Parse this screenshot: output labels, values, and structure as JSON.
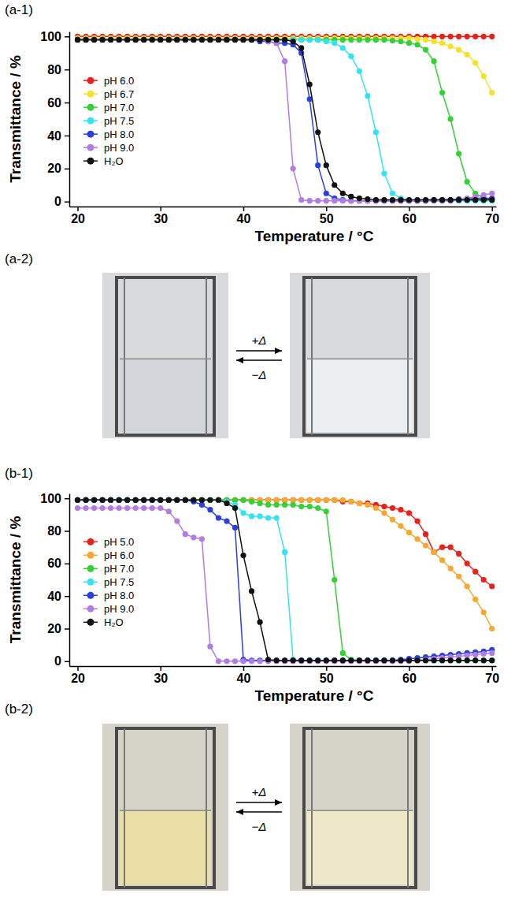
{
  "chart_data": [
    {
      "type": "line",
      "panel_label": "(a-1)",
      "x_label": "Temperature / °C",
      "y_label": "Transmittance / %",
      "xlim": [
        19,
        70.5
      ],
      "xticks": [
        20,
        30,
        40,
        50,
        60,
        70
      ],
      "ylim": [
        -3,
        103
      ],
      "yticks": [
        0,
        20,
        40,
        60,
        80,
        100
      ],
      "grid": false,
      "legend": "left",
      "marker": "circle",
      "line_style": "solid",
      "x": [
        20,
        21,
        22,
        23,
        24,
        25,
        26,
        27,
        28,
        29,
        30,
        31,
        32,
        33,
        34,
        35,
        36,
        37,
        38,
        39,
        40,
        41,
        42,
        43,
        44,
        45,
        46,
        47,
        48,
        49,
        50,
        51,
        52,
        53,
        54,
        55,
        56,
        57,
        58,
        59,
        60,
        61,
        62,
        63,
        64,
        65,
        66,
        67,
        68,
        69,
        70
      ],
      "series": [
        {
          "name": "pH 6.0",
          "color": "#e8221b",
          "values": [
            100,
            100,
            100,
            100,
            100,
            100,
            100,
            100,
            100,
            100,
            100,
            100,
            100,
            100,
            100,
            100,
            100,
            100,
            100,
            100,
            100,
            100,
            100,
            100,
            100,
            100,
            100,
            100,
            100,
            100,
            100,
            100,
            100,
            100,
            100,
            100,
            100,
            100,
            100,
            100,
            100,
            100,
            100,
            100,
            100,
            100,
            100,
            100,
            100,
            100,
            100
          ]
        },
        {
          "name": "pH 6.7",
          "color": "#f2e22b",
          "values": [
            99,
            99,
            99,
            99,
            99,
            99,
            99,
            99,
            99,
            99,
            99,
            99,
            99,
            99,
            99,
            99,
            99,
            99,
            99,
            99,
            99,
            99,
            99,
            99,
            99,
            99,
            99,
            99,
            99,
            99,
            99,
            99,
            99,
            99,
            99,
            99,
            99,
            99,
            99,
            99,
            99,
            98.5,
            98,
            97,
            96,
            94,
            92,
            89,
            84,
            76,
            66
          ]
        },
        {
          "name": "pH 7.0",
          "color": "#35d035",
          "values": [
            98,
            98,
            98,
            98,
            98,
            98,
            98,
            98,
            98,
            98,
            98,
            98,
            98,
            98,
            98,
            98,
            98,
            98,
            98,
            98,
            98,
            98,
            98,
            98,
            98,
            98,
            98,
            98,
            98,
            98,
            98,
            98,
            98,
            98,
            98,
            98,
            98,
            98,
            97.5,
            97,
            96,
            95,
            92,
            85,
            66,
            50,
            29,
            12,
            5,
            2,
            1
          ]
        },
        {
          "name": "pH 7.5",
          "color": "#35e3f0",
          "values": [
            98,
            98,
            98,
            98,
            98,
            98,
            98,
            98,
            98,
            98,
            98,
            98,
            98,
            98,
            98,
            98,
            98,
            98,
            98,
            98,
            98,
            98,
            98,
            98,
            98,
            98,
            98,
            98,
            98,
            98,
            97,
            96,
            93,
            88,
            79,
            64,
            42,
            17,
            5,
            2,
            1,
            0.5,
            0.5,
            0.5,
            0.5,
            0.5,
            0.5,
            0.5,
            0.5,
            0.5,
            0.5
          ]
        },
        {
          "name": "pH 8.0",
          "color": "#2b3fe0",
          "values": [
            98,
            98,
            98,
            98,
            98,
            98,
            98,
            98,
            98,
            98,
            98,
            98,
            98,
            98,
            98,
            98,
            98,
            98,
            98,
            98,
            98,
            98,
            97,
            97,
            96,
            96,
            95,
            90,
            62,
            22,
            5,
            2,
            1,
            0.5,
            0.5,
            0.5,
            0.5,
            0.5,
            0.5,
            0.5,
            0.5,
            0.5,
            0.5,
            1,
            1,
            1,
            1.5,
            1.5,
            2,
            2,
            2
          ]
        },
        {
          "name": "pH 9.0",
          "color": "#b27de3",
          "values": [
            98,
            98,
            98,
            98,
            98,
            98,
            98,
            98,
            98,
            98,
            98,
            98,
            98,
            98,
            98,
            98,
            98,
            98,
            98,
            98,
            98,
            98,
            98,
            97,
            96,
            85,
            20,
            1,
            0.5,
            0.5,
            0.5,
            0.5,
            0.5,
            0.5,
            0.5,
            0.5,
            0.5,
            0.5,
            0.5,
            0.5,
            0.5,
            0.5,
            0.5,
            0.5,
            0.5,
            0.5,
            1,
            2,
            3,
            4,
            5
          ]
        },
        {
          "name": "H₂O",
          "color": "#111111",
          "values": [
            98,
            98,
            98,
            98,
            98,
            98,
            98,
            98,
            98,
            98,
            98,
            98,
            98,
            98,
            98,
            98,
            98,
            98,
            98,
            98,
            98,
            98,
            98,
            98,
            98,
            98,
            97,
            93,
            71,
            42,
            22,
            10,
            5,
            3,
            2,
            1.5,
            1,
            1,
            1,
            1,
            1,
            1,
            1,
            1,
            1,
            1,
            1,
            1,
            1,
            1,
            1
          ]
        }
      ]
    },
    {
      "type": "line",
      "panel_label": "(b-1)",
      "x_label": "Temperature / °C",
      "y_label": "Transmittance / %",
      "xlim": [
        19,
        70.5
      ],
      "xticks": [
        20,
        30,
        40,
        50,
        60,
        70
      ],
      "ylim": [
        -3,
        103
      ],
      "yticks": [
        0,
        20,
        40,
        60,
        80,
        100
      ],
      "grid": false,
      "legend": "left",
      "marker": "circle",
      "line_style": "solid",
      "x": [
        20,
        21,
        22,
        23,
        24,
        25,
        26,
        27,
        28,
        29,
        30,
        31,
        32,
        33,
        34,
        35,
        36,
        37,
        38,
        39,
        40,
        41,
        42,
        43,
        44,
        45,
        46,
        47,
        48,
        49,
        50,
        51,
        52,
        53,
        54,
        55,
        56,
        57,
        58,
        59,
        60,
        61,
        62,
        63,
        64,
        65,
        66,
        67,
        68,
        69,
        70
      ],
      "series": [
        {
          "name": "pH 5.0",
          "color": "#e8221b",
          "values": [
            99,
            99,
            99,
            99,
            99,
            99,
            99,
            99,
            99,
            99,
            99,
            99,
            99,
            99,
            99,
            99,
            99,
            99,
            99,
            99,
            99,
            99,
            99,
            99,
            99,
            99,
            99,
            99,
            99,
            99,
            99,
            99,
            98,
            98,
            97,
            97,
            96,
            95,
            94,
            93,
            91,
            86,
            78,
            67,
            70,
            70,
            66,
            60,
            55,
            50,
            46
          ]
        },
        {
          "name": "pH 6.0",
          "color": "#f6a833",
          "values": [
            99,
            99,
            99,
            99,
            99,
            99,
            99,
            99,
            99,
            99,
            99,
            99,
            99,
            99,
            99,
            99,
            99,
            99,
            99,
            99,
            99,
            99,
            99,
            99,
            99,
            99,
            99,
            99,
            99,
            99,
            99,
            99,
            99,
            98,
            97,
            96,
            94,
            91,
            87,
            83,
            79,
            75,
            71,
            67,
            62,
            57,
            52,
            46,
            38,
            30,
            20
          ]
        },
        {
          "name": "pH 7.0",
          "color": "#35d035",
          "values": [
            99,
            99,
            99,
            99,
            99,
            99,
            99,
            99,
            99,
            99,
            99,
            99,
            99,
            99,
            99,
            99,
            99,
            99,
            99,
            99,
            99,
            98,
            97,
            96,
            96,
            96,
            96,
            95,
            95,
            94,
            92,
            50,
            5,
            1,
            0.5,
            0.5,
            0.5,
            0.5,
            0.5,
            0.5,
            0.5,
            0.5,
            0.5,
            0.5,
            0.5,
            0.5,
            0.5,
            0.5,
            0.5,
            0.5,
            0.5
          ]
        },
        {
          "name": "pH 7.5",
          "color": "#35e3f0",
          "values": [
            99,
            99,
            99,
            99,
            99,
            99,
            99,
            99,
            99,
            99,
            99,
            99,
            99,
            99,
            99,
            99,
            99,
            99,
            98,
            96,
            91,
            89,
            89,
            88,
            88,
            67,
            1,
            0.5,
            0.5,
            0.5,
            0.5,
            0.5,
            0.5,
            0.5,
            0.5,
            0.5,
            0.5,
            0.5,
            0.5,
            0.5,
            0.5,
            0.5,
            0.5,
            0.5,
            0.5,
            0.5,
            0.5,
            0.5,
            0.5,
            0.5,
            0.5
          ]
        },
        {
          "name": "pH 8.0",
          "color": "#2b3fe0",
          "values": [
            99,
            99,
            99,
            99,
            99,
            99,
            99,
            99,
            99,
            99,
            99,
            99,
            99,
            99,
            98,
            96,
            93,
            88,
            86,
            82,
            1,
            0.5,
            0.5,
            0.5,
            0.5,
            0.5,
            0.5,
            0.5,
            0.5,
            0.5,
            0.5,
            0.5,
            0.5,
            0.5,
            0.5,
            0.5,
            0.5,
            0.5,
            0.5,
            1,
            1.5,
            2,
            2.5,
            3,
            3.5,
            4,
            4.5,
            5,
            5.5,
            6,
            7
          ]
        },
        {
          "name": "pH 9.0",
          "color": "#b27de3",
          "values": [
            94,
            94,
            94,
            94,
            94,
            94,
            94,
            94,
            94,
            94,
            94,
            92,
            86,
            78,
            76,
            75,
            9,
            0,
            0,
            0,
            0,
            0,
            0,
            0,
            0,
            0,
            0,
            0,
            0,
            0,
            0,
            0,
            0,
            0,
            0,
            0,
            0,
            0,
            0,
            0,
            0,
            0.5,
            1,
            1.5,
            2,
            2.5,
            3,
            3.5,
            4,
            4.5,
            5
          ]
        },
        {
          "name": "H₂O",
          "color": "#111111",
          "values": [
            99,
            99,
            99,
            99,
            99,
            99,
            99,
            99,
            99,
            99,
            99,
            99,
            99,
            99,
            99,
            99,
            99,
            99,
            97,
            94,
            65,
            43,
            24,
            1,
            0.5,
            0.5,
            0.5,
            0.5,
            0.5,
            0.5,
            0.5,
            0.5,
            0.5,
            0.5,
            0.5,
            0.5,
            0.5,
            0.5,
            0.5,
            0.5,
            0.5,
            0.5,
            0.5,
            0.5,
            0.5,
            0.5,
            0.5,
            0.5,
            0.5,
            0.5,
            0.5
          ]
        }
      ]
    }
  ],
  "photos": [
    {
      "panel_label": "(a-2)",
      "heating": "+Δ",
      "cooling": "−Δ"
    },
    {
      "panel_label": "(b-2)",
      "heating": "+Δ",
      "cooling": "−Δ"
    }
  ]
}
